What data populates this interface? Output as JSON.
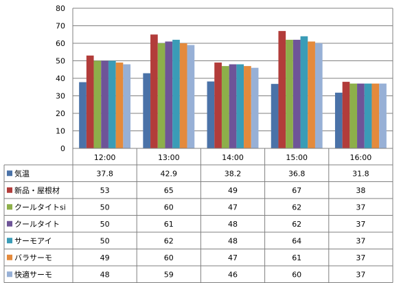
{
  "chart_data": {
    "type": "bar",
    "categories": [
      "12:00",
      "13:00",
      "14:00",
      "15:00",
      "16:00"
    ],
    "ylim": [
      0,
      80
    ],
    "yticks": [
      0,
      10,
      20,
      30,
      40,
      50,
      60,
      70,
      80
    ],
    "grid": true,
    "legend": "data-table-left",
    "series": [
      {
        "name": "気温",
        "color": "#4a72a8",
        "values": [
          37.8,
          42.9,
          38.2,
          36.8,
          31.8
        ]
      },
      {
        "name": "新品・屋根材",
        "color": "#b23c3a",
        "values": [
          53,
          65,
          49,
          67,
          38
        ]
      },
      {
        "name": "クールタイトsi",
        "color": "#8daf4a",
        "values": [
          50,
          60,
          47,
          62,
          37
        ]
      },
      {
        "name": "クールタイト",
        "color": "#6e5498",
        "values": [
          50,
          61,
          48,
          62,
          37
        ]
      },
      {
        "name": "サーモアイ",
        "color": "#3a9cb7",
        "values": [
          50,
          62,
          48,
          64,
          37
        ]
      },
      {
        "name": "バラサーモ",
        "color": "#e48a3c",
        "values": [
          49,
          60,
          47,
          61,
          37
        ]
      },
      {
        "name": "快適サーモ",
        "color": "#97b0d6",
        "values": [
          48,
          59,
          46,
          60,
          37
        ]
      }
    ]
  }
}
